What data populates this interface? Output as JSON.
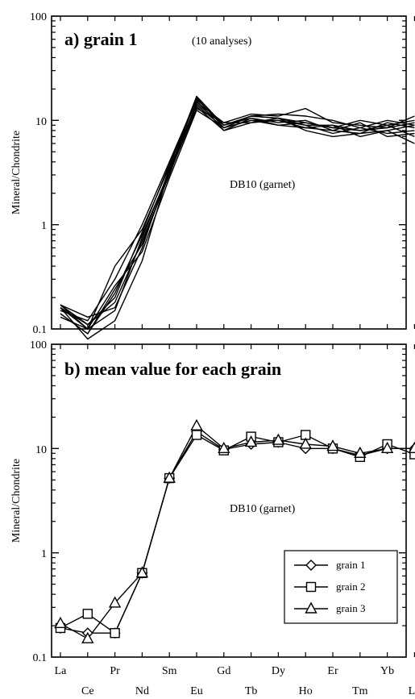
{
  "chart_data": [
    {
      "type": "line",
      "title": "a) grain 1",
      "subtitle": "(10 analyses)",
      "annotation": "DB10 (garnet)",
      "ylabel": "Mineral/Chondrite",
      "yscale": "log",
      "ylim": [
        0.1,
        100
      ],
      "yticks": [
        "0.1",
        "1",
        "10",
        "100"
      ],
      "x": [
        "La",
        "Ce",
        "Pr",
        "Nd",
        "Sm",
        "Eu",
        "Gd",
        "Tb",
        "Dy",
        "Ho",
        "Er",
        "Tm",
        "Yb",
        "Lu"
      ],
      "series": [
        {
          "values": [
            0.17,
            0.1,
            0.4,
            0.9,
            3.6,
            17.0,
            9.0,
            11.0,
            10.5,
            9.5,
            8.5,
            8.0,
            9.0,
            10.0
          ]
        },
        {
          "values": [
            0.14,
            0.09,
            0.22,
            0.8,
            3.2,
            14.0,
            8.5,
            10.0,
            9.0,
            8.5,
            8.0,
            7.5,
            8.0,
            9.0
          ]
        },
        {
          "values": [
            0.16,
            0.11,
            0.18,
            0.7,
            3.0,
            15.0,
            9.5,
            11.5,
            11.0,
            13.0,
            9.5,
            9.0,
            8.5,
            11.0
          ]
        },
        {
          "values": [
            0.17,
            0.13,
            0.16,
            0.6,
            3.5,
            13.5,
            8.0,
            9.5,
            10.5,
            8.0,
            7.0,
            7.5,
            9.5,
            8.5
          ]
        },
        {
          "values": [
            0.15,
            0.12,
            0.3,
            1.0,
            4.0,
            16.0,
            9.0,
            10.5,
            9.5,
            10.0,
            8.0,
            9.5,
            7.0,
            7.5
          ]
        },
        {
          "values": [
            0.13,
            0.1,
            0.26,
            0.55,
            2.8,
            12.5,
            8.5,
            10.0,
            10.0,
            9.0,
            9.0,
            8.0,
            8.5,
            9.5
          ]
        },
        {
          "values": [
            0.16,
            0.08,
            0.12,
            0.45,
            3.4,
            14.5,
            9.0,
            11.0,
            11.5,
            11.0,
            10.0,
            8.5,
            7.5,
            8.0
          ]
        },
        {
          "values": [
            0.17,
            0.11,
            0.2,
            0.85,
            3.8,
            15.5,
            8.0,
            10.5,
            9.0,
            9.5,
            8.5,
            10.0,
            9.0,
            7.0
          ]
        },
        {
          "values": [
            0.14,
            0.09,
            0.24,
            0.65,
            3.1,
            13.0,
            9.5,
            9.5,
            10.0,
            8.5,
            9.0,
            7.0,
            8.0,
            6.0
          ]
        },
        {
          "values": [
            0.16,
            0.1,
            0.15,
            0.75,
            3.3,
            16.5,
            8.5,
            11.0,
            10.5,
            9.0,
            7.5,
            8.5,
            10.0,
            9.0
          ]
        }
      ]
    },
    {
      "type": "line",
      "title": "b) mean value for each grain",
      "annotation": "DB10 (garnet)",
      "ylabel": "Mineral/Chondrite",
      "yscale": "log",
      "ylim": [
        0.1,
        100
      ],
      "yticks": [
        "0.1",
        "1",
        "10",
        "100"
      ],
      "x": [
        "La",
        "Ce",
        "Pr",
        "Nd",
        "Sm",
        "Eu",
        "Gd",
        "Tb",
        "Dy",
        "Ho",
        "Er",
        "Tm",
        "Yb",
        "Lu"
      ],
      "xticks_top_row": [
        "La",
        "Pr",
        "Eu",
        "Tb",
        "Ho",
        "Tm",
        "Lu"
      ],
      "xticks_bottom_row": [
        "Ce",
        "Nd",
        "Sm",
        "Gd",
        "Dy",
        "Er",
        "Yb"
      ],
      "legend_position": "bottom-right",
      "series": [
        {
          "name": "grain 1",
          "marker": "diamond",
          "values": [
            0.19,
            0.17,
            0.17,
            0.64,
            5.2,
            14.5,
            9.8,
            11.0,
            11.5,
            10.0,
            10.0,
            8.6,
            10.0,
            10.0
          ]
        },
        {
          "name": "grain 2",
          "marker": "square",
          "values": [
            0.19,
            0.26,
            0.17,
            0.64,
            5.2,
            13.5,
            9.6,
            13.0,
            11.5,
            13.5,
            10.0,
            8.3,
            11.0,
            8.8
          ]
        },
        {
          "name": "grain 3",
          "marker": "triangle",
          "values": [
            0.21,
            0.15,
            0.33,
            0.64,
            5.2,
            16.5,
            10.0,
            11.5,
            12.0,
            11.0,
            10.5,
            9.0,
            10.0,
            10.0
          ]
        }
      ]
    }
  ]
}
